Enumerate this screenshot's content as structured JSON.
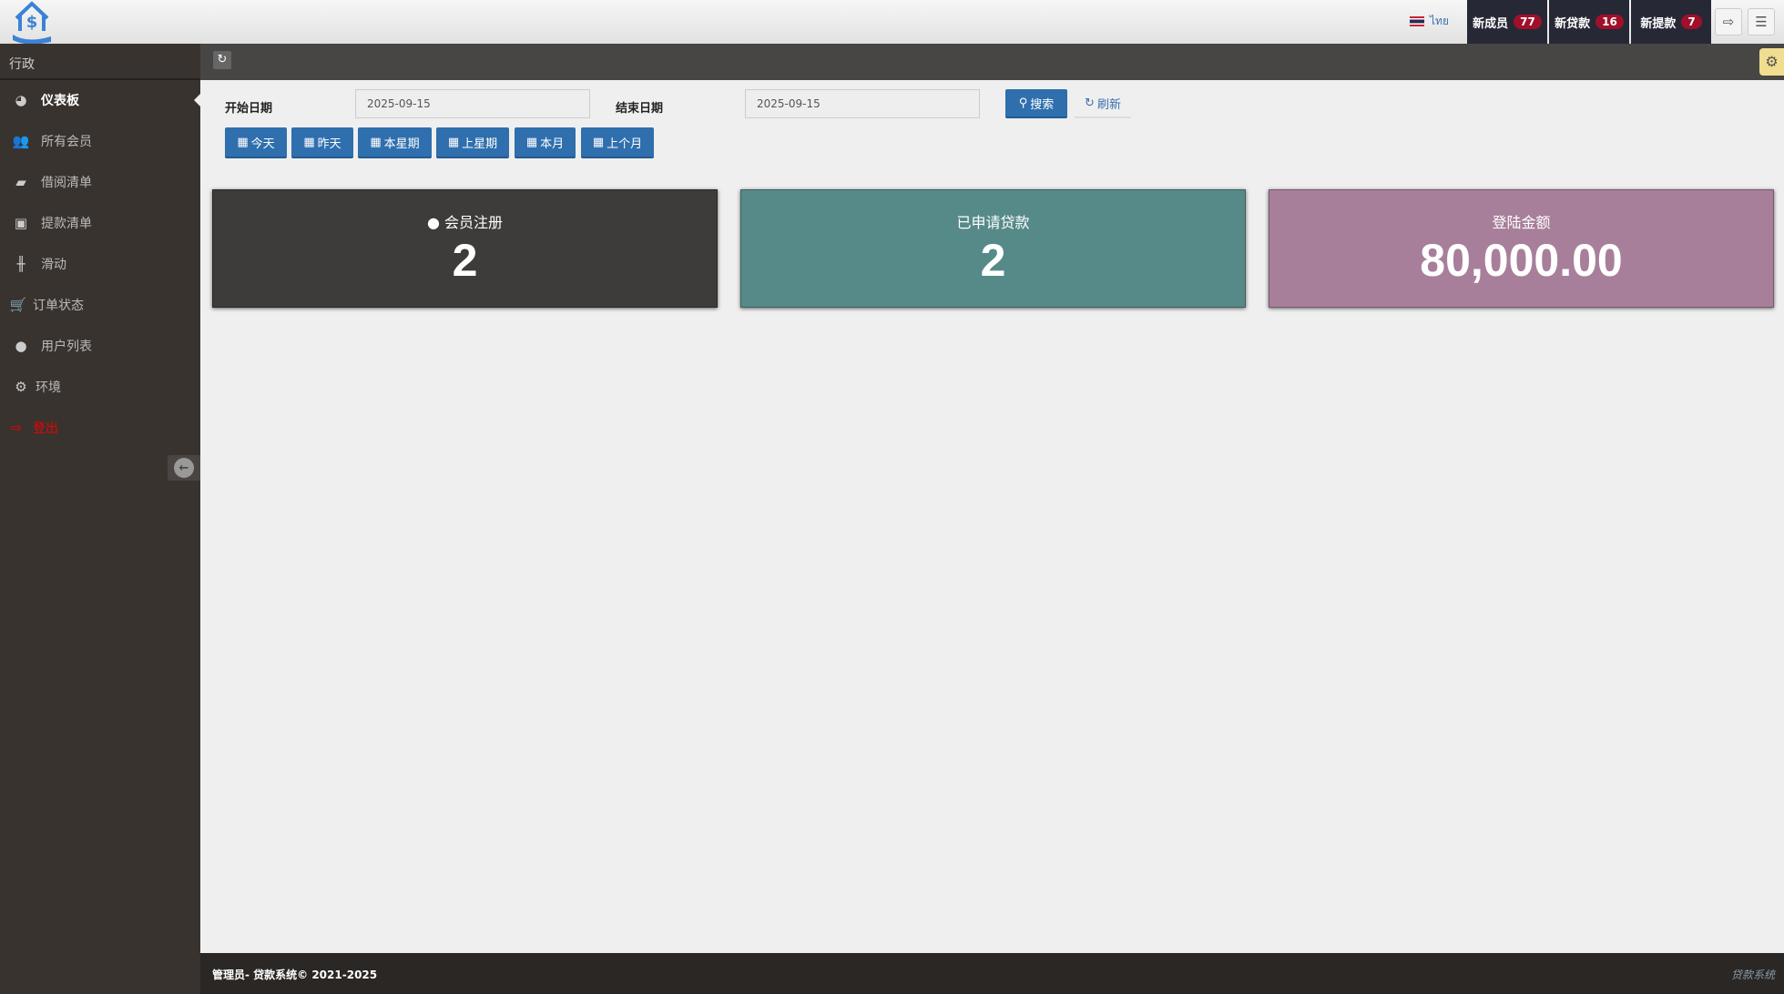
{
  "header": {
    "language": "ไทย",
    "tabs": [
      {
        "label": "新成员",
        "count": "77"
      },
      {
        "label": "新贷款",
        "count": "16"
      },
      {
        "label": "新提款",
        "count": "7"
      }
    ]
  },
  "sidebar": {
    "title": "行政",
    "items": [
      {
        "label": "仪表板",
        "icon": "dashboard-icon"
      },
      {
        "label": "所有会员",
        "icon": "users-icon"
      },
      {
        "label": "借阅清单",
        "icon": "book-icon"
      },
      {
        "label": "提款清单",
        "icon": "money-icon"
      },
      {
        "label": "滑动",
        "icon": "sliders-icon"
      },
      {
        "label": "订单状态",
        "icon": "cart-icon"
      },
      {
        "label": "用户列表",
        "icon": "user-icon"
      },
      {
        "label": "环境",
        "icon": "gear-icon"
      },
      {
        "label": "登出",
        "icon": "sign-out-icon"
      }
    ]
  },
  "filter": {
    "start_label": "开始日期",
    "start_value": "2025-09-15",
    "end_label": "结束日期",
    "end_value": "2025-09-15",
    "search": "搜索",
    "refresh": "刷新",
    "quick": [
      "今天",
      "昨天",
      "本星期",
      "上星期",
      "本月",
      "上个月"
    ]
  },
  "stats": [
    {
      "title": "会员注册",
      "value": "2",
      "color": "#3d3c3b"
    },
    {
      "title": "已申请贷款",
      "value": "2",
      "color": "#568a89"
    },
    {
      "title": "登陆金额",
      "value": "80,000.00",
      "color": "#a87f9a"
    }
  ],
  "footer": {
    "left": "管理员- 贷款系统© 2021-2025",
    "right": "贷款系统"
  }
}
